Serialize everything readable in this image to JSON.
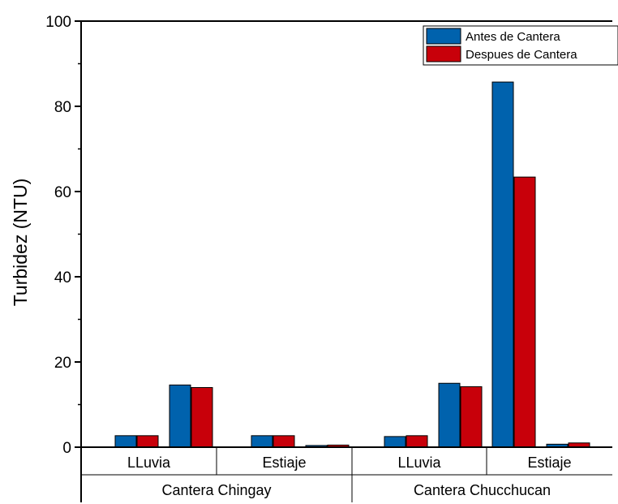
{
  "chart_data": {
    "type": "bar",
    "ylabel": "Turbidez (NTU)",
    "ylim": [
      0,
      100
    ],
    "yticks": [
      0,
      20,
      40,
      60,
      80,
      100
    ],
    "grid": false,
    "legend_position": "top-right",
    "groups": [
      {
        "label": "Cantera Chingay",
        "categories": [
          {
            "label": "LLuvia",
            "pairs": [
              [
                2.7,
                2.7
              ],
              [
                14.6,
                14.0
              ]
            ]
          },
          {
            "label": "Estiaje",
            "pairs": [
              [
                2.7,
                2.7
              ],
              [
                0.4,
                0.5
              ]
            ]
          }
        ]
      },
      {
        "label": "Cantera Chucchucan",
        "categories": [
          {
            "label": "LLuvia",
            "pairs": [
              [
                2.5,
                2.7
              ],
              [
                15.0,
                14.2
              ]
            ]
          },
          {
            "label": "Estiaje",
            "pairs": [
              [
                85.7,
                63.4
              ],
              [
                0.7,
                1.0
              ]
            ]
          }
        ]
      }
    ],
    "series": [
      {
        "name": "Antes de Cantera",
        "color": "#0062ad"
      },
      {
        "name": "Despues de Cantera",
        "color": "#c8000a"
      }
    ]
  }
}
